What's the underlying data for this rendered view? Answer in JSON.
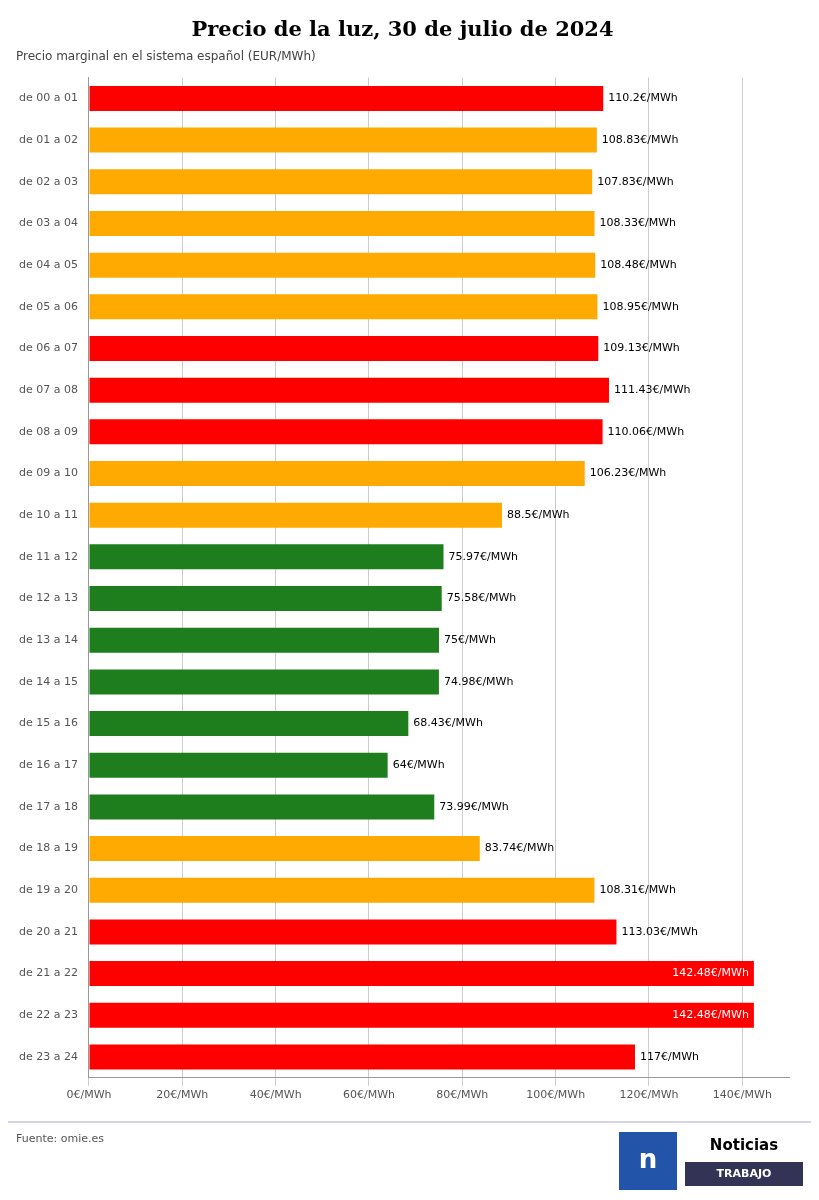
{
  "chart_data": {
    "type": "bar",
    "orientation": "horizontal",
    "title": "Precio de la luz, 30 de julio de 2024",
    "subtitle": "Precio marginal en el sistema español (EUR/MWh)",
    "source": "Fuente: omie.es",
    "annotations": [
      "n",
      "Noticias",
      "TRABAJO"
    ],
    "categories": [
      "de 00 a 01",
      "de 01 a 02",
      "de 02 a 03",
      "de 03 a 04",
      "de 04 a 05",
      "de 05 a 06",
      "de 06 a 07",
      "de 07 a 08",
      "de 08 a 09",
      "de 09 a 10",
      "de 10 a 11",
      "de 11 a 12",
      "de 12 a 13",
      "de 13 a 14",
      "de 14 a 15",
      "de 15 a 16",
      "de 16 a 17",
      "de 17 a 18",
      "de 18 a 19",
      "de 19 a 20",
      "de 20 a 21",
      "de 21 a 22",
      "de 22 a 23",
      "de 23 a 24"
    ],
    "values": [
      110.2,
      108.83,
      107.83,
      108.33,
      108.48,
      108.95,
      109.13,
      111.43,
      110.06,
      106.23,
      88.5,
      75.97,
      75.58,
      75.0,
      74.98,
      68.43,
      64.0,
      73.99,
      83.74,
      108.31,
      113.03,
      142.48,
      142.48,
      117.0
    ],
    "value_labels": [
      "110.2€/MWh",
      "108.83€/MWh",
      "107.83€/MWh",
      "108.33€/MWh",
      "108.48€/MWh",
      "108.95€/MWh",
      "109.13€/MWh",
      "111.43€/MWh",
      "110.06€/MWh",
      "106.23€/MWh",
      "88.5€/MWh",
      "75.97€/MWh",
      "75.58€/MWh",
      "75€/MWh",
      "74.98€/MWh",
      "68.43€/MWh",
      "64€/MWh",
      "73.99€/MWh",
      "83.74€/MWh",
      "108.31€/MWh",
      "113.03€/MWh",
      "142.48€/MWh",
      "142.48€/MWh",
      "117€/MWh"
    ],
    "data_labels": true,
    "colors": [
      "#ff0000",
      "#ffaa00",
      "#ffaa00",
      "#ffaa00",
      "#ffaa00",
      "#ffaa00",
      "#ff0000",
      "#ff0000",
      "#ff0000",
      "#ffaa00",
      "#ffaa00",
      "#1e7e1e",
      "#1e7e1e",
      "#1e7e1e",
      "#1e7e1e",
      "#1e7e1e",
      "#1e7e1e",
      "#1e7e1e",
      "#ffaa00",
      "#ffaa00",
      "#ff0000",
      "#ff0000",
      "#ff0000",
      "#ff0000"
    ],
    "xlim": [
      0,
      150
    ],
    "xticks": [
      {
        "value": 0,
        "label": "0€/MWh"
      },
      {
        "value": 20,
        "label": "20€/MWh"
      },
      {
        "value": 40,
        "label": "40€/MWh"
      },
      {
        "value": 60,
        "label": "60€/MWh"
      },
      {
        "value": 80,
        "label": "80€/MWh"
      },
      {
        "value": 100,
        "label": "100€/MWh"
      },
      {
        "value": 120,
        "label": "120€/MWh"
      },
      {
        "value": 140,
        "label": "140€/MWh"
      }
    ],
    "grid": true
  }
}
